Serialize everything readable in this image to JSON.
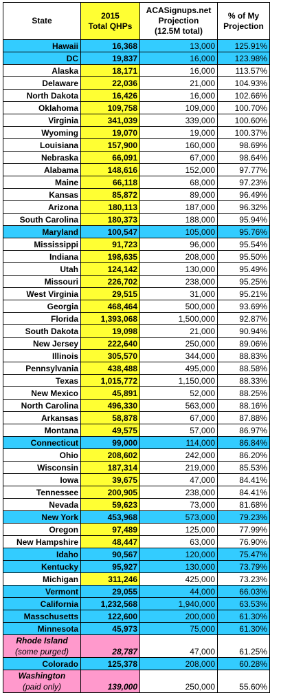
{
  "headers": {
    "state": "State",
    "qhp_line1": "2015",
    "qhp_line2": "Total QHPs",
    "proj_line1": "ACASignups.net",
    "proj_line2": "Projection",
    "proj_line3": "(12.5M total)",
    "pct_line1": "% of My",
    "pct_line2": "Projection"
  },
  "colors": {
    "blue_highlight": "#33ccff",
    "yellow_column": "#ffff33",
    "pink_highlight": "#ff99cc"
  },
  "rows": [
    {
      "state": "Hawaii",
      "qhp": "16,368",
      "proj": "13,000",
      "pct": "125.91%",
      "style": "blue"
    },
    {
      "state": "DC",
      "qhp": "19,837",
      "proj": "16,000",
      "pct": "123.98%",
      "style": "blue"
    },
    {
      "state": "Alaska",
      "qhp": "18,171",
      "proj": "16,000",
      "pct": "113.57%",
      "style": ""
    },
    {
      "state": "Delaware",
      "qhp": "22,036",
      "proj": "21,000",
      "pct": "104.93%",
      "style": ""
    },
    {
      "state": "North Dakota",
      "qhp": "16,426",
      "proj": "16,000",
      "pct": "102.66%",
      "style": ""
    },
    {
      "state": "Oklahoma",
      "qhp": "109,758",
      "proj": "109,000",
      "pct": "100.70%",
      "style": ""
    },
    {
      "state": "Virginia",
      "qhp": "341,039",
      "proj": "339,000",
      "pct": "100.60%",
      "style": ""
    },
    {
      "state": "Wyoming",
      "qhp": "19,070",
      "proj": "19,000",
      "pct": "100.37%",
      "style": ""
    },
    {
      "state": "Louisiana",
      "qhp": "157,900",
      "proj": "160,000",
      "pct": "98.69%",
      "style": ""
    },
    {
      "state": "Nebraska",
      "qhp": "66,091",
      "proj": "67,000",
      "pct": "98.64%",
      "style": ""
    },
    {
      "state": "Alabama",
      "qhp": "148,616",
      "proj": "152,000",
      "pct": "97.77%",
      "style": ""
    },
    {
      "state": "Maine",
      "qhp": "66,118",
      "proj": "68,000",
      "pct": "97.23%",
      "style": ""
    },
    {
      "state": "Kansas",
      "qhp": "85,872",
      "proj": "89,000",
      "pct": "96.49%",
      "style": ""
    },
    {
      "state": "Arizona",
      "qhp": "180,113",
      "proj": "187,000",
      "pct": "96.32%",
      "style": ""
    },
    {
      "state": "South Carolina",
      "qhp": "180,373",
      "proj": "188,000",
      "pct": "95.94%",
      "style": ""
    },
    {
      "state": "Maryland",
      "qhp": "100,547",
      "proj": "105,000",
      "pct": "95.76%",
      "style": "blue"
    },
    {
      "state": "Mississippi",
      "qhp": "91,723",
      "proj": "96,000",
      "pct": "95.54%",
      "style": ""
    },
    {
      "state": "Indiana",
      "qhp": "198,635",
      "proj": "208,000",
      "pct": "95.50%",
      "style": ""
    },
    {
      "state": "Utah",
      "qhp": "124,142",
      "proj": "130,000",
      "pct": "95.49%",
      "style": ""
    },
    {
      "state": "Missouri",
      "qhp": "226,702",
      "proj": "238,000",
      "pct": "95.25%",
      "style": ""
    },
    {
      "state": "West Virginia",
      "qhp": "29,515",
      "proj": "31,000",
      "pct": "95.21%",
      "style": ""
    },
    {
      "state": "Georgia",
      "qhp": "468,464",
      "proj": "500,000",
      "pct": "93.69%",
      "style": ""
    },
    {
      "state": "Florida",
      "qhp": "1,393,068",
      "proj": "1,500,000",
      "pct": "92.87%",
      "style": ""
    },
    {
      "state": "South Dakota",
      "qhp": "19,098",
      "proj": "21,000",
      "pct": "90.94%",
      "style": ""
    },
    {
      "state": "New Jersey",
      "qhp": "222,640",
      "proj": "250,000",
      "pct": "89.06%",
      "style": ""
    },
    {
      "state": "Illinois",
      "qhp": "305,570",
      "proj": "344,000",
      "pct": "88.83%",
      "style": ""
    },
    {
      "state": "Pennsylvania",
      "qhp": "438,488",
      "proj": "495,000",
      "pct": "88.58%",
      "style": ""
    },
    {
      "state": "Texas",
      "qhp": "1,015,772",
      "proj": "1,150,000",
      "pct": "88.33%",
      "style": ""
    },
    {
      "state": "New Mexico",
      "qhp": "45,891",
      "proj": "52,000",
      "pct": "88.25%",
      "style": ""
    },
    {
      "state": "North Carolina",
      "qhp": "496,330",
      "proj": "563,000",
      "pct": "88.16%",
      "style": ""
    },
    {
      "state": "Arkansas",
      "qhp": "58,878",
      "proj": "67,000",
      "pct": "87.88%",
      "style": ""
    },
    {
      "state": "Montana",
      "qhp": "49,575",
      "proj": "57,000",
      "pct": "86.97%",
      "style": ""
    },
    {
      "state": "Connecticut",
      "qhp": "99,000",
      "proj": "114,000",
      "pct": "86.84%",
      "style": "blue"
    },
    {
      "state": "Ohio",
      "qhp": "208,602",
      "proj": "242,000",
      "pct": "86.20%",
      "style": ""
    },
    {
      "state": "Wisconsin",
      "qhp": "187,314",
      "proj": "219,000",
      "pct": "85.53%",
      "style": ""
    },
    {
      "state": "Iowa",
      "qhp": "39,675",
      "proj": "47,000",
      "pct": "84.41%",
      "style": ""
    },
    {
      "state": "Tennessee",
      "qhp": "200,905",
      "proj": "238,000",
      "pct": "84.41%",
      "style": ""
    },
    {
      "state": "Nevada",
      "qhp": "59,623",
      "proj": "73,000",
      "pct": "81.68%",
      "style": ""
    },
    {
      "state": "New York",
      "qhp": "453,968",
      "proj": "573,000",
      "pct": "79.23%",
      "style": "blue"
    },
    {
      "state": "Oregon",
      "qhp": "97,489",
      "proj": "125,000",
      "pct": "77.99%",
      "style": ""
    },
    {
      "state": "New Hampshire",
      "qhp": "48,447",
      "proj": "63,000",
      "pct": "76.90%",
      "style": ""
    },
    {
      "state": "Idaho",
      "qhp": "90,567",
      "proj": "120,000",
      "pct": "75.47%",
      "style": "blue"
    },
    {
      "state": "Kentucky",
      "qhp": "95,927",
      "proj": "130,000",
      "pct": "73.79%",
      "style": "blue"
    },
    {
      "state": "Michigan",
      "qhp": "311,246",
      "proj": "425,000",
      "pct": "73.23%",
      "style": ""
    },
    {
      "state": "Vermont",
      "qhp": "29,055",
      "proj": "44,000",
      "pct": "66.03%",
      "style": "blue"
    },
    {
      "state": "California",
      "qhp": "1,232,568",
      "proj": "1,940,000",
      "pct": "63.53%",
      "style": "blue"
    },
    {
      "state": "Masschusetts",
      "qhp": "122,600",
      "proj": "200,000",
      "pct": "61.30%",
      "style": "blue"
    },
    {
      "state": "Minnesota",
      "qhp": "45,973",
      "proj": "75,000",
      "pct": "61.30%",
      "style": "blue"
    },
    {
      "state": "Rhode Island",
      "note": "(some purged)",
      "qhp": "28,787",
      "proj": "47,000",
      "pct": "61.25%",
      "style": "pink"
    },
    {
      "state": "Colorado",
      "qhp": "125,378",
      "proj": "208,000",
      "pct": "60.28%",
      "style": "blue"
    },
    {
      "state": "Washington",
      "note": "(paid only)",
      "qhp": "139,000",
      "proj": "250,000",
      "pct": "55.60%",
      "style": "pink"
    }
  ]
}
